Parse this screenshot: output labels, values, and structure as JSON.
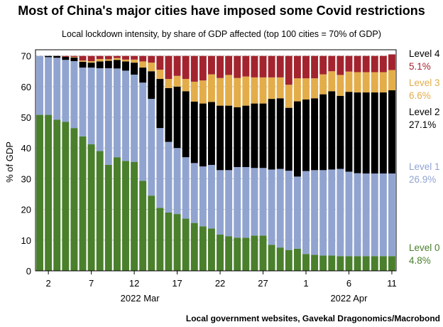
{
  "chart_data": {
    "type": "bar",
    "stacked": true,
    "title": "Most of China's major cities have imposed some Covid restrictions",
    "subtitle": "Local lockdown intensity, by share of GDP affected (top 100 cities = 70% of GDP)",
    "ylabel": "% of GDP",
    "xlabel_months": [
      {
        "label": "2022 Mar",
        "start": 0
      },
      {
        "label": "2022 Apr",
        "start": 30
      }
    ],
    "ylim": [
      0,
      72
    ],
    "yticks": [
      0,
      10,
      20,
      30,
      40,
      50,
      60,
      70
    ],
    "x_tick_labels": [
      "2",
      "7",
      "12",
      "17",
      "22",
      "27",
      "1",
      "6",
      "11"
    ],
    "x_tick_indices": [
      1,
      6,
      11,
      16,
      21,
      26,
      31,
      36,
      41
    ],
    "categories": [
      "Mar 1",
      "Mar 2",
      "Mar 3",
      "Mar 4",
      "Mar 5",
      "Mar 6",
      "Mar 7",
      "Mar 8",
      "Mar 9",
      "Mar 10",
      "Mar 11",
      "Mar 12",
      "Mar 13",
      "Mar 14",
      "Mar 15",
      "Mar 16",
      "Mar 17",
      "Mar 18",
      "Mar 19",
      "Mar 20",
      "Mar 21",
      "Mar 22",
      "Mar 23",
      "Mar 24",
      "Mar 25",
      "Mar 26",
      "Mar 27",
      "Mar 28",
      "Mar 29",
      "Mar 30",
      "Mar 31",
      "Apr 1",
      "Apr 2",
      "Apr 3",
      "Apr 4",
      "Apr 5",
      "Apr 6",
      "Apr 7",
      "Apr 8",
      "Apr 9",
      "Apr 10",
      "Apr 11"
    ],
    "series": [
      {
        "name": "Level 0",
        "color": "#4a7f2c",
        "values": [
          50.8,
          50.8,
          49.2,
          48.5,
          46.5,
          43.8,
          41.2,
          39.0,
          34.5,
          37.0,
          35.8,
          35.5,
          29.3,
          24.5,
          20.5,
          19.0,
          18.5,
          17.0,
          15.6,
          14.5,
          13.8,
          11.8,
          11.3,
          10.8,
          10.8,
          11.5,
          11.5,
          8.5,
          7.6,
          6.8,
          7.2,
          5.5,
          5.2,
          5.0,
          5.0,
          4.8,
          4.8,
          4.8,
          4.8,
          4.8,
          4.8,
          4.8
        ]
      },
      {
        "name": "Level 1",
        "color": "#91a4d0",
        "values": [
          19.2,
          18.8,
          20.2,
          20.2,
          21.8,
          22.4,
          25.0,
          27.0,
          31.5,
          28.9,
          29.4,
          28.4,
          32.0,
          31.5,
          26.0,
          23.0,
          21.5,
          20.0,
          19.5,
          19.5,
          20.7,
          21.0,
          21.5,
          23.0,
          23.0,
          22.0,
          22.0,
          24.5,
          25.6,
          25.8,
          23.5,
          27.0,
          27.6,
          27.8,
          28.0,
          28.4,
          27.5,
          27.0,
          26.9,
          26.9,
          26.9,
          26.9
        ]
      },
      {
        "name": "Level 2",
        "color": "#000000",
        "values": [
          0.0,
          0.4,
          0.6,
          1.0,
          1.2,
          1.9,
          1.6,
          2.2,
          2.4,
          2.8,
          3.0,
          3.9,
          4.9,
          9.0,
          16.0,
          17.5,
          20.0,
          21.5,
          20.0,
          20.5,
          20.5,
          21.0,
          21.0,
          19.5,
          20.0,
          21.0,
          21.0,
          23.0,
          23.0,
          20.5,
          24.5,
          23.3,
          23.4,
          24.7,
          25.5,
          23.8,
          26.0,
          26.3,
          26.4,
          26.4,
          26.4,
          27.1
        ]
      },
      {
        "name": "Level 3",
        "color": "#e3ad4a",
        "values": [
          0.0,
          0.0,
          0.0,
          0.0,
          0.2,
          0.4,
          0.5,
          0.8,
          0.5,
          0.6,
          0.6,
          1.0,
          2.0,
          2.8,
          3.0,
          3.0,
          3.5,
          4.0,
          6.5,
          7.5,
          9.0,
          9.0,
          10.0,
          9.5,
          9.5,
          8.5,
          8.5,
          7.0,
          6.8,
          7.5,
          7.5,
          6.9,
          6.5,
          6.5,
          6.5,
          6.8,
          6.6,
          6.6,
          6.6,
          6.6,
          6.6,
          6.6
        ]
      },
      {
        "name": "Level 4",
        "color": "#a3242e",
        "values": [
          0.0,
          0.0,
          0.0,
          0.3,
          0.3,
          1.5,
          1.7,
          1.0,
          1.1,
          0.7,
          1.2,
          1.2,
          1.8,
          2.2,
          4.5,
          7.5,
          6.5,
          7.5,
          8.4,
          8.0,
          6.0,
          7.2,
          6.2,
          7.2,
          6.7,
          7.0,
          7.0,
          7.0,
          7.0,
          9.4,
          7.3,
          7.3,
          7.3,
          6.0,
          5.0,
          6.2,
          5.1,
          5.3,
          5.3,
          5.3,
          5.3,
          5.1
        ]
      }
    ],
    "legend": [
      {
        "name": "Level 4",
        "value": "5.1%",
        "color": "#a3242e",
        "name_color": "#000000"
      },
      {
        "name": "Level 3",
        "value": "6.6%",
        "color": "#e3ad4a",
        "name_color": "#e3ad4a"
      },
      {
        "name": "Level 2",
        "value": "27.1%",
        "color": "#000000",
        "name_color": "#000000"
      },
      {
        "name": "Level 1",
        "value": "26.9%",
        "color": "#91a4d0",
        "name_color": "#91a4d0"
      },
      {
        "name": "Level 0",
        "value": "4.8%",
        "color": "#4a7f2c",
        "name_color": "#4a7f2c"
      }
    ],
    "legend_placement": "right",
    "source": "Local government websites, Gavekal Dragonomics/Macrobond"
  }
}
